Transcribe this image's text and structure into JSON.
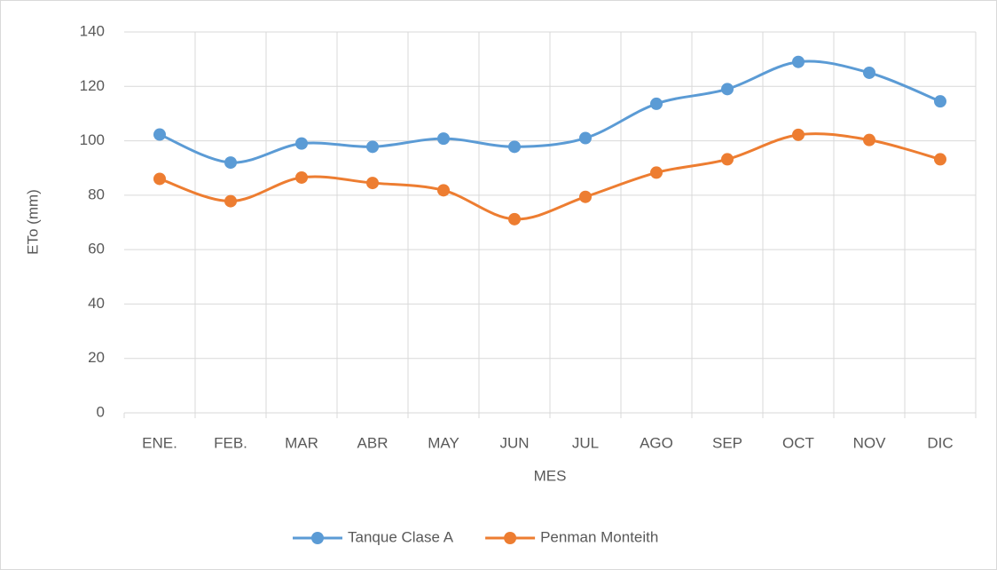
{
  "chart_data": {
    "type": "line",
    "x_label": "MES",
    "y_label": "ETo (mm)",
    "categories": [
      "ENE.",
      "FEB.",
      "MAR",
      "ABR",
      "MAY",
      "JUN",
      "JUL",
      "AGO",
      "SEP",
      "OCT",
      "NOV",
      "DIC"
    ],
    "series": [
      {
        "name": "Tanque Clase A",
        "color": "#5b9bd5",
        "values": [
          102.3,
          92,
          99,
          97.8,
          100.8,
          97.8,
          101,
          113.6,
          119,
          129,
          125,
          114.5
        ]
      },
      {
        "name": "Penman Monteith",
        "color": "#ed7d31",
        "values": [
          86,
          77.8,
          86.5,
          84.5,
          81.8,
          71.2,
          79.4,
          88.3,
          93.2,
          102.2,
          100.3,
          93.2
        ]
      }
    ],
    "ylim": [
      0,
      140
    ],
    "yticks": [
      0,
      20,
      40,
      60,
      80,
      100,
      120,
      140
    ],
    "grid": true,
    "smooth": true,
    "legend": "bottom"
  }
}
